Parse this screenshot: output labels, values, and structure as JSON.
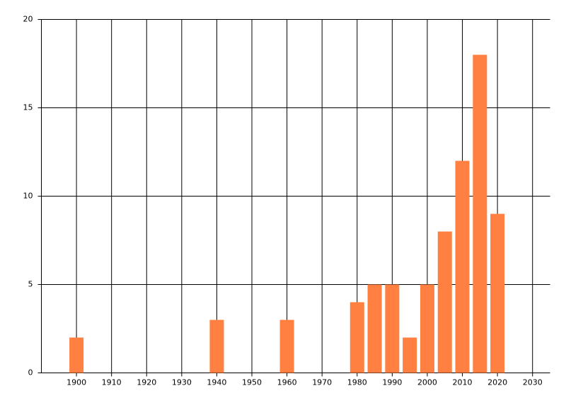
{
  "chart_data": {
    "type": "bar",
    "x": [
      1900,
      1940,
      1960,
      1980,
      1985,
      1990,
      1995,
      2000,
      2005,
      2010,
      2015,
      2020
    ],
    "values": [
      2,
      3,
      3,
      4,
      5,
      5,
      2,
      5,
      8,
      12,
      18,
      9
    ],
    "color": "#ff8040",
    "xlim": [
      1890,
      2035
    ],
    "xticks": [
      1900,
      1910,
      1920,
      1930,
      1940,
      1950,
      1960,
      1970,
      1980,
      1990,
      2000,
      2010,
      2020,
      2030
    ],
    "ylim": [
      0,
      20
    ],
    "yticks": [
      0,
      5,
      10,
      15,
      20
    ],
    "grid": true
  }
}
